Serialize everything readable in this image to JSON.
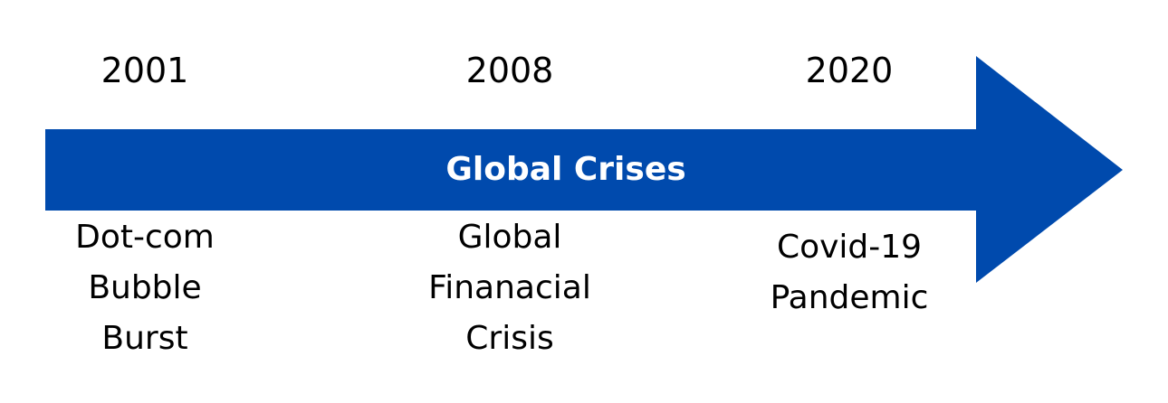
{
  "diagram": {
    "title": "Global Crises",
    "arrow_color": "#004aad",
    "milestones": [
      {
        "year": "2001",
        "event_lines": [
          "Dot-com",
          "Bubble",
          "Burst"
        ]
      },
      {
        "year": "2008",
        "event_lines": [
          "Global",
          "Finanacial",
          "Crisis"
        ]
      },
      {
        "year": "2020",
        "event_lines": [
          "Covid-19",
          "Pandemic"
        ]
      }
    ]
  }
}
